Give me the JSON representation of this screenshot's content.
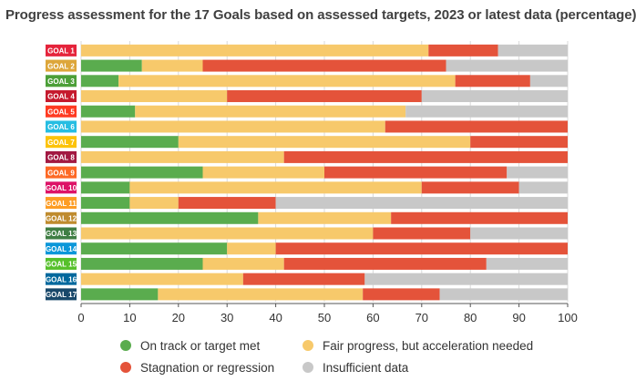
{
  "chart_data": {
    "type": "bar",
    "orientation": "horizontal",
    "stacked": true,
    "title": "Progress assessment for the 17 Goals based on assessed targets, 2023 or latest data (percentage)",
    "xlabel": "",
    "ylabel": "",
    "xlim": [
      0,
      100
    ],
    "xticks": [
      0,
      10,
      20,
      30,
      40,
      50,
      60,
      70,
      80,
      90,
      100
    ],
    "grid": "vertical",
    "categories": [
      "GOAL 1",
      "GOAL 2",
      "GOAL 3",
      "GOAL 4",
      "GOAL 5",
      "GOAL 6",
      "GOAL 7",
      "GOAL 8",
      "GOAL 9",
      "GOAL 10",
      "GOAL 11",
      "GOAL 12",
      "GOAL 13",
      "GOAL 14",
      "GOAL 15",
      "GOAL 16",
      "GOAL 17"
    ],
    "category_colors": [
      "#e5243b",
      "#dda63a",
      "#4c9f38",
      "#c5192d",
      "#ff3a21",
      "#26bde2",
      "#fcc30b",
      "#a21942",
      "#fd6925",
      "#dd1367",
      "#fd9d24",
      "#bf8b2e",
      "#3f7e44",
      "#0a97d9",
      "#56c02b",
      "#00689d",
      "#19486a"
    ],
    "series": [
      {
        "name": "On track or target met",
        "color": "#5aac4e",
        "values": [
          0,
          12.5,
          7.7,
          0,
          11.1,
          0,
          20,
          0,
          25,
          10,
          10,
          36.4,
          0,
          30,
          25,
          0,
          15.8
        ]
      },
      {
        "name": "Fair progress, but acceleration needed",
        "color": "#f7c96b",
        "values": [
          71.4,
          12.5,
          69.2,
          30,
          55.6,
          62.5,
          60,
          41.7,
          25,
          60,
          10,
          27.3,
          60,
          10,
          16.7,
          33.3,
          42.1
        ]
      },
      {
        "name": "Stagnation or regression",
        "color": "#e4533a",
        "values": [
          14.3,
          50,
          15.4,
          40,
          0,
          37.5,
          20,
          58.3,
          37.5,
          20,
          20,
          36.3,
          20,
          60,
          41.6,
          25,
          15.8
        ]
      },
      {
        "name": "Insufficient data",
        "color": "#c8c8c8",
        "values": [
          14.3,
          25,
          7.7,
          30,
          33.3,
          0,
          0,
          0,
          12.5,
          10,
          60,
          0,
          20,
          0,
          16.7,
          41.7,
          26.3
        ]
      }
    ],
    "legend": {
      "placement": "bottom",
      "items": [
        "On track or target met",
        "Fair progress, but acceleration needed",
        "Stagnation or regression",
        "Insufficient data"
      ]
    }
  }
}
